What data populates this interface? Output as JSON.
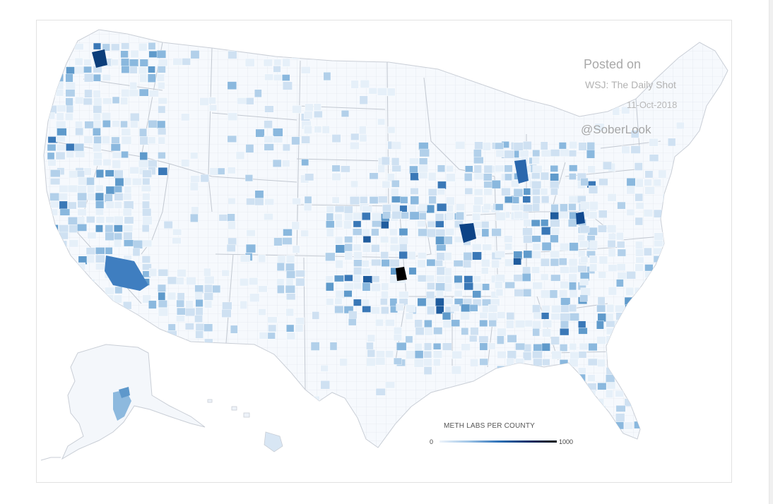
{
  "watermark": {
    "posted": "Posted on",
    "source": "WSJ: The Daily Shot",
    "date": "11-Oct-2018",
    "handle": "@SoberLook"
  },
  "legend": {
    "title": "METH LABS PER COUNTY",
    "min": "0",
    "max": "1000",
    "colors": [
      "#eef4fb",
      "#9ec4e6",
      "#2f72b8",
      "#08306b",
      "#000814"
    ]
  },
  "map": {
    "base_fill": "#f6f9fd",
    "border_color": "#d4d9e0"
  }
}
